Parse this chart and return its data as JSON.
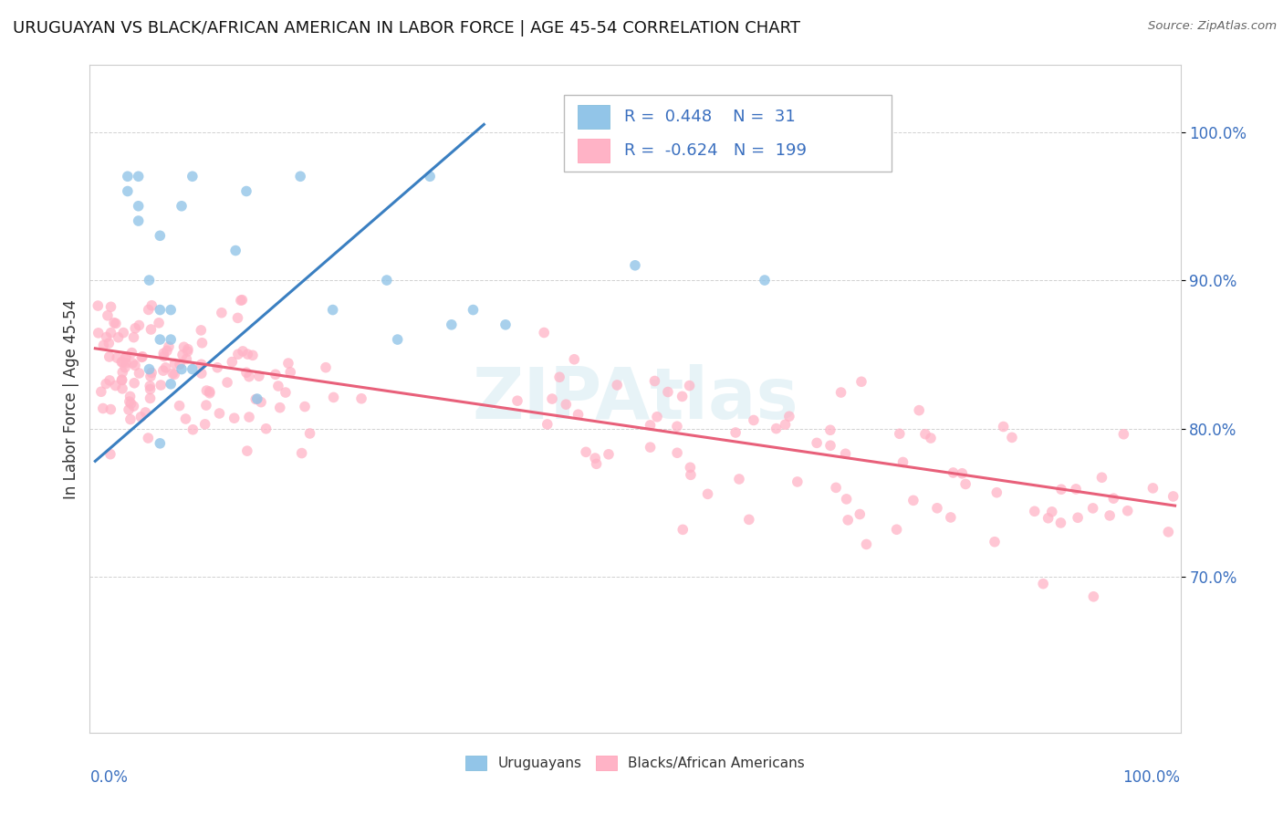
{
  "title": "URUGUAYAN VS BLACK/AFRICAN AMERICAN IN LABOR FORCE | AGE 45-54 CORRELATION CHART",
  "source_text": "Source: ZipAtlas.com",
  "ylabel": "In Labor Force | Age 45-54",
  "legend_label1": "Uruguayans",
  "legend_label2": "Blacks/African Americans",
  "r1": 0.448,
  "n1": 31,
  "r2": -0.624,
  "n2": 199,
  "color_blue": "#92c5e8",
  "color_pink": "#ffb3c6",
  "color_line_blue": "#3a7fc1",
  "color_line_pink": "#e8607a",
  "watermark": "ZIPAtlas",
  "xmin": 0.0,
  "xmax": 1.0,
  "ymin": 0.595,
  "ymax": 1.045,
  "ytick_vals": [
    0.7,
    0.8,
    0.9,
    1.0
  ],
  "ytick_labels": [
    "70.0%",
    "80.0%",
    "90.0%",
    "100.0%"
  ],
  "uru_line_x0": 0.0,
  "uru_line_y0": 0.778,
  "uru_line_x1": 0.36,
  "uru_line_y1": 1.005,
  "baa_line_x0": 0.0,
  "baa_line_y0": 0.854,
  "baa_line_x1": 1.0,
  "baa_line_y1": 0.748
}
